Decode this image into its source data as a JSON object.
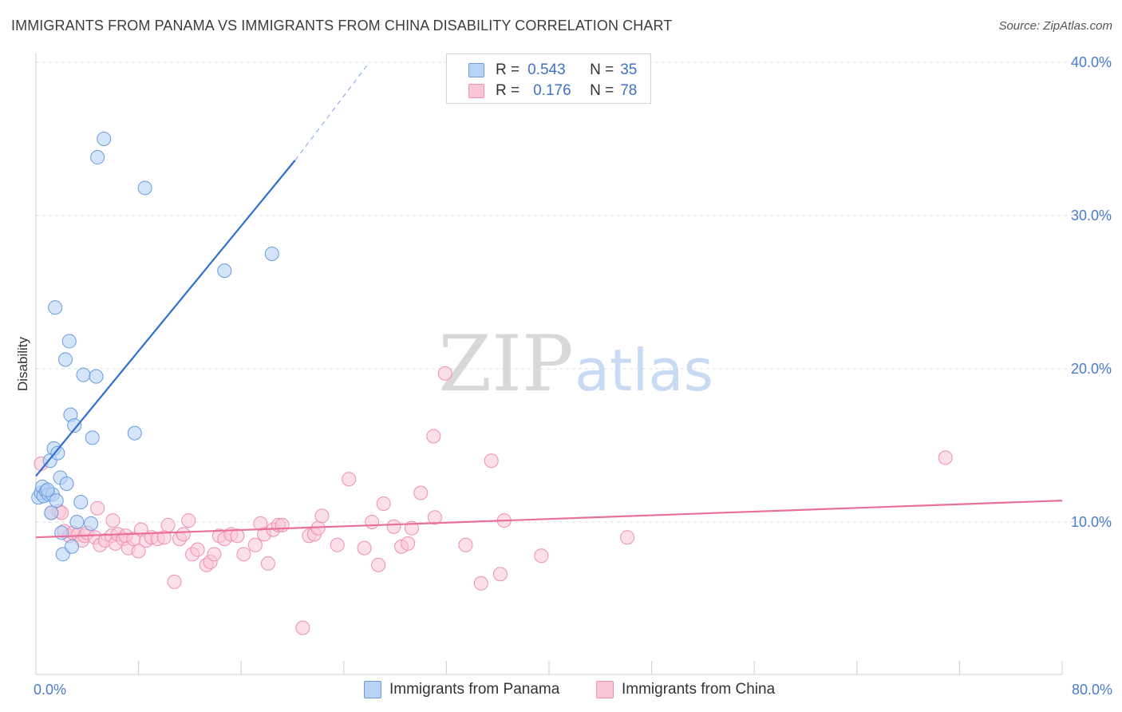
{
  "title": "IMMIGRANTS FROM PANAMA VS IMMIGRANTS FROM CHINA DISABILITY CORRELATION CHART",
  "source": "Source: ZipAtlas.com",
  "watermark": {
    "zip": "ZIP",
    "atlas": "atlas"
  },
  "colors": {
    "panama_fill": "#b8d2f5",
    "panama_stroke": "#6a9be0",
    "panama_line": "#2f6fd0",
    "china_fill": "#f9c6d6",
    "china_stroke": "#ee8fae",
    "china_line": "#e8709a",
    "tick_text": "#4a7bd0",
    "grid": "#dedede"
  },
  "legend": {
    "rows": [
      {
        "r_label": "R =",
        "r_value": "0.543",
        "n_label": "N =",
        "n_value": "35"
      },
      {
        "r_label": "R =",
        "r_value": "0.176",
        "n_label": "N =",
        "n_value": "78"
      }
    ]
  },
  "bottom_legend": {
    "panama": "Immigrants from Panama",
    "china": "Immigrants from China"
  },
  "chart_data": {
    "type": "scatter",
    "title": "IMMIGRANTS FROM PANAMA VS IMMIGRANTS FROM CHINA DISABILITY CORRELATION CHART",
    "xlabel": "",
    "ylabel": "Disability",
    "xlim": [
      0,
      80
    ],
    "ylim": [
      0,
      42
    ],
    "x_tick_labels": [
      "0.0%",
      "80.0%"
    ],
    "y_ticks": [
      10,
      20,
      30,
      40
    ],
    "y_tick_labels": [
      "10.0%",
      "20.0%",
      "30.0%",
      "40.0%"
    ],
    "grid": true,
    "series": [
      {
        "name": "Immigrants from Panama",
        "R": 0.543,
        "N": 35,
        "trend": {
          "x": [
            0,
            20.2
          ],
          "y": [
            13.0,
            33.6
          ],
          "dashed_to": [
            26,
            40
          ]
        },
        "points": [
          [
            0.2,
            11.6
          ],
          [
            0.4,
            11.9
          ],
          [
            0.5,
            12.3
          ],
          [
            0.6,
            11.7
          ],
          [
            0.8,
            12.0
          ],
          [
            1.0,
            11.8
          ],
          [
            1.1,
            14.0
          ],
          [
            1.2,
            10.6
          ],
          [
            1.3,
            11.8
          ],
          [
            1.4,
            14.8
          ],
          [
            1.5,
            24.0
          ],
          [
            1.6,
            11.4
          ],
          [
            1.7,
            14.5
          ],
          [
            1.9,
            12.9
          ],
          [
            2.0,
            9.3
          ],
          [
            2.1,
            7.9
          ],
          [
            2.3,
            20.6
          ],
          [
            2.4,
            12.5
          ],
          [
            2.6,
            21.8
          ],
          [
            2.7,
            17.0
          ],
          [
            2.8,
            8.4
          ],
          [
            3.0,
            16.3
          ],
          [
            3.2,
            10.0
          ],
          [
            3.5,
            11.3
          ],
          [
            3.7,
            19.6
          ],
          [
            4.3,
            9.9
          ],
          [
            4.4,
            15.5
          ],
          [
            4.7,
            19.5
          ],
          [
            4.8,
            33.8
          ],
          [
            5.3,
            35.0
          ],
          [
            7.7,
            15.8
          ],
          [
            8.5,
            31.8
          ],
          [
            14.7,
            26.4
          ],
          [
            18.4,
            27.5
          ],
          [
            0.9,
            12.1
          ]
        ]
      },
      {
        "name": "Immigrants from China",
        "R": 0.176,
        "N": 78,
        "trend": {
          "x": [
            0,
            80
          ],
          "y": [
            9.0,
            11.4
          ]
        },
        "points": [
          [
            0.4,
            13.8
          ],
          [
            1.2,
            10.6
          ],
          [
            1.8,
            10.7
          ],
          [
            2.0,
            10.6
          ],
          [
            2.2,
            9.4
          ],
          [
            2.6,
            9.1
          ],
          [
            2.9,
            9.3
          ],
          [
            3.3,
            9.2
          ],
          [
            3.6,
            8.8
          ],
          [
            3.8,
            9.1
          ],
          [
            4.0,
            9.3
          ],
          [
            4.6,
            9.0
          ],
          [
            4.8,
            10.9
          ],
          [
            5.0,
            8.5
          ],
          [
            5.4,
            8.8
          ],
          [
            5.9,
            9.1
          ],
          [
            6.0,
            10.1
          ],
          [
            6.2,
            8.6
          ],
          [
            6.4,
            9.2
          ],
          [
            6.8,
            8.9
          ],
          [
            7.0,
            9.1
          ],
          [
            7.2,
            8.3
          ],
          [
            7.6,
            8.9
          ],
          [
            8.0,
            8.1
          ],
          [
            8.2,
            9.5
          ],
          [
            8.6,
            8.8
          ],
          [
            9.0,
            9.0
          ],
          [
            9.5,
            8.9
          ],
          [
            10.0,
            9.0
          ],
          [
            10.3,
            9.8
          ],
          [
            10.8,
            6.1
          ],
          [
            11.2,
            8.9
          ],
          [
            11.5,
            9.2
          ],
          [
            11.9,
            10.1
          ],
          [
            12.2,
            7.9
          ],
          [
            12.6,
            8.2
          ],
          [
            13.3,
            7.2
          ],
          [
            13.6,
            7.4
          ],
          [
            13.9,
            7.9
          ],
          [
            14.3,
            9.1
          ],
          [
            14.7,
            8.9
          ],
          [
            15.2,
            9.2
          ],
          [
            15.7,
            9.1
          ],
          [
            16.2,
            7.9
          ],
          [
            17.1,
            8.5
          ],
          [
            17.5,
            9.9
          ],
          [
            17.8,
            9.2
          ],
          [
            18.1,
            7.3
          ],
          [
            18.5,
            9.5
          ],
          [
            18.9,
            9.8
          ],
          [
            19.2,
            9.8
          ],
          [
            20.8,
            3.1
          ],
          [
            21.3,
            9.1
          ],
          [
            21.7,
            9.2
          ],
          [
            22.0,
            9.6
          ],
          [
            22.3,
            10.4
          ],
          [
            23.5,
            8.5
          ],
          [
            24.4,
            12.8
          ],
          [
            25.6,
            8.3
          ],
          [
            26.2,
            10.0
          ],
          [
            26.7,
            7.2
          ],
          [
            27.1,
            11.2
          ],
          [
            27.9,
            9.7
          ],
          [
            28.5,
            8.4
          ],
          [
            29.0,
            8.6
          ],
          [
            29.3,
            9.6
          ],
          [
            30.0,
            11.9
          ],
          [
            31.0,
            15.6
          ],
          [
            31.1,
            10.3
          ],
          [
            31.9,
            19.7
          ],
          [
            33.5,
            8.5
          ],
          [
            34.7,
            6.0
          ],
          [
            35.5,
            14.0
          ],
          [
            36.2,
            6.6
          ],
          [
            36.5,
            10.1
          ],
          [
            39.4,
            7.8
          ],
          [
            46.1,
            9.0
          ],
          [
            70.9,
            14.2
          ]
        ]
      }
    ]
  }
}
